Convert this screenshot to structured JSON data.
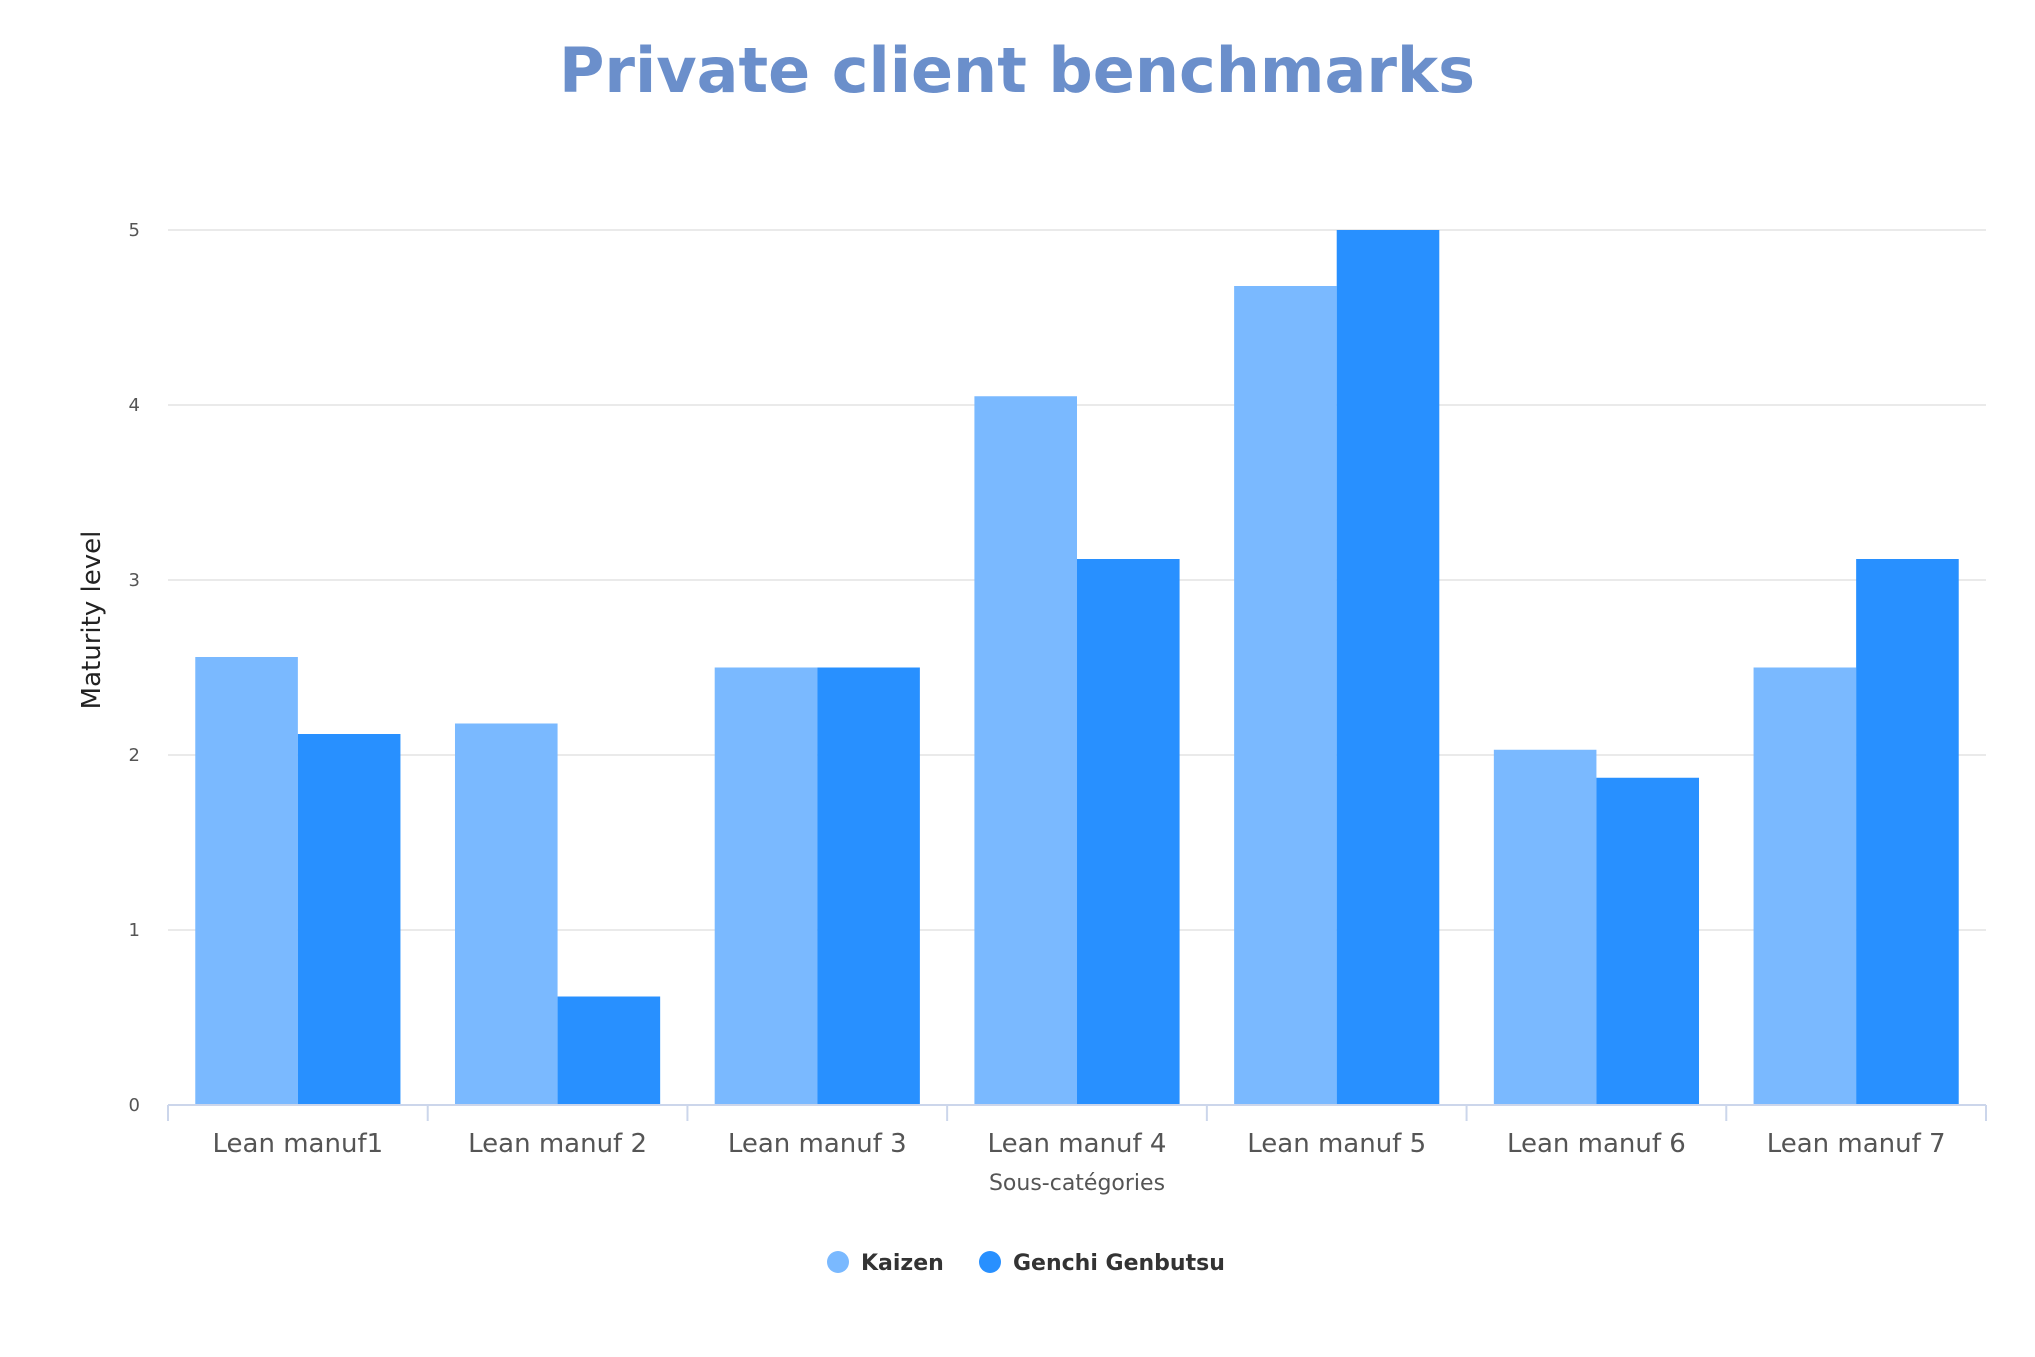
{
  "chart_data": {
    "type": "bar",
    "title": "Private client benchmarks",
    "xlabel": "Sous-catégories",
    "ylabel": "Maturity level",
    "categories": [
      "Lean manuf1",
      "Lean manuf 2",
      "Lean manuf 3",
      "Lean manuf 4",
      "Lean manuf 5",
      "Lean manuf 6",
      "Lean manuf 7"
    ],
    "series": [
      {
        "name": "Kaizen",
        "color": "#7ab9ff",
        "values": [
          2.56,
          2.18,
          2.5,
          4.05,
          4.68,
          2.03,
          2.5
        ]
      },
      {
        "name": "Genchi Genbutsu",
        "color": "#2890ff",
        "values": [
          2.12,
          0.62,
          2.5,
          3.12,
          5.0,
          1.87,
          3.12
        ]
      }
    ],
    "ylim": [
      0,
      5
    ],
    "yticks": [
      0,
      1,
      2,
      3,
      4,
      5
    ],
    "grid": true,
    "legend_position": "bottom-center"
  }
}
